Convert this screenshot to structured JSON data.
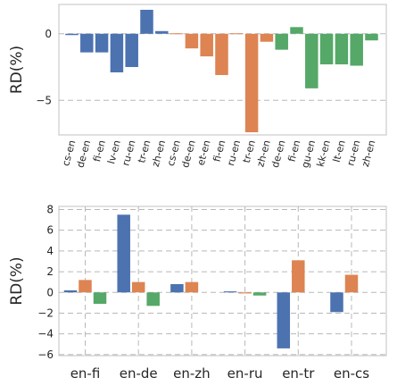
{
  "chart_data": [
    {
      "type": "bar",
      "ylabel": "RD(%)",
      "xlabel": "",
      "ylim": [
        -7.6,
        2.2
      ],
      "yticks": [
        -5,
        0
      ],
      "grid": "dashed horizontal",
      "series": [
        {
          "name": "",
          "color": "#4C72B0",
          "categories": [
            "cs-en",
            "de-en",
            "fi-en",
            "lv-en",
            "ru-en",
            "tr-en",
            "zh-en"
          ],
          "values": [
            -0.1,
            -1.4,
            -1.4,
            -2.9,
            -2.5,
            1.8,
            0.2
          ]
        },
        {
          "name": "",
          "color": "#DD8452",
          "categories": [
            "cs-en",
            "de-en",
            "et-en",
            "fi-en",
            "ru-en",
            "tr-en",
            "zh-en"
          ],
          "values": [
            0.0,
            -1.1,
            -1.7,
            -3.1,
            0.0,
            -7.4,
            -0.6
          ]
        },
        {
          "name": "",
          "color": "#55A868",
          "categories": [
            "de-en",
            "fi-en",
            "gu-en",
            "kk-en",
            "lt-en",
            "ru-en",
            "zh-en"
          ],
          "values": [
            -1.2,
            0.5,
            -4.1,
            -2.3,
            -2.3,
            -2.4,
            -0.5
          ]
        }
      ]
    },
    {
      "type": "bar",
      "ylabel": "RD(%)",
      "xlabel": "",
      "ylim": [
        -6.1,
        8.3
      ],
      "yticks": [
        -6,
        -4,
        -2,
        0,
        2,
        4,
        6,
        8
      ],
      "grid": "dashed both",
      "categories": [
        "en-fi",
        "en-de",
        "en-zh",
        "en-ru",
        "en-tr",
        "en-cs"
      ],
      "series": [
        {
          "name": "",
          "color": "#4C72B0",
          "values": [
            0.2,
            7.5,
            0.8,
            0.1,
            -5.4,
            -1.9
          ]
        },
        {
          "name": "",
          "color": "#DD8452",
          "values": [
            1.2,
            1.0,
            1.0,
            -0.1,
            3.1,
            1.7
          ]
        },
        {
          "name": "",
          "color": "#55A868",
          "values": [
            -1.1,
            -1.3,
            null,
            -0.3,
            null,
            null
          ]
        }
      ]
    }
  ]
}
